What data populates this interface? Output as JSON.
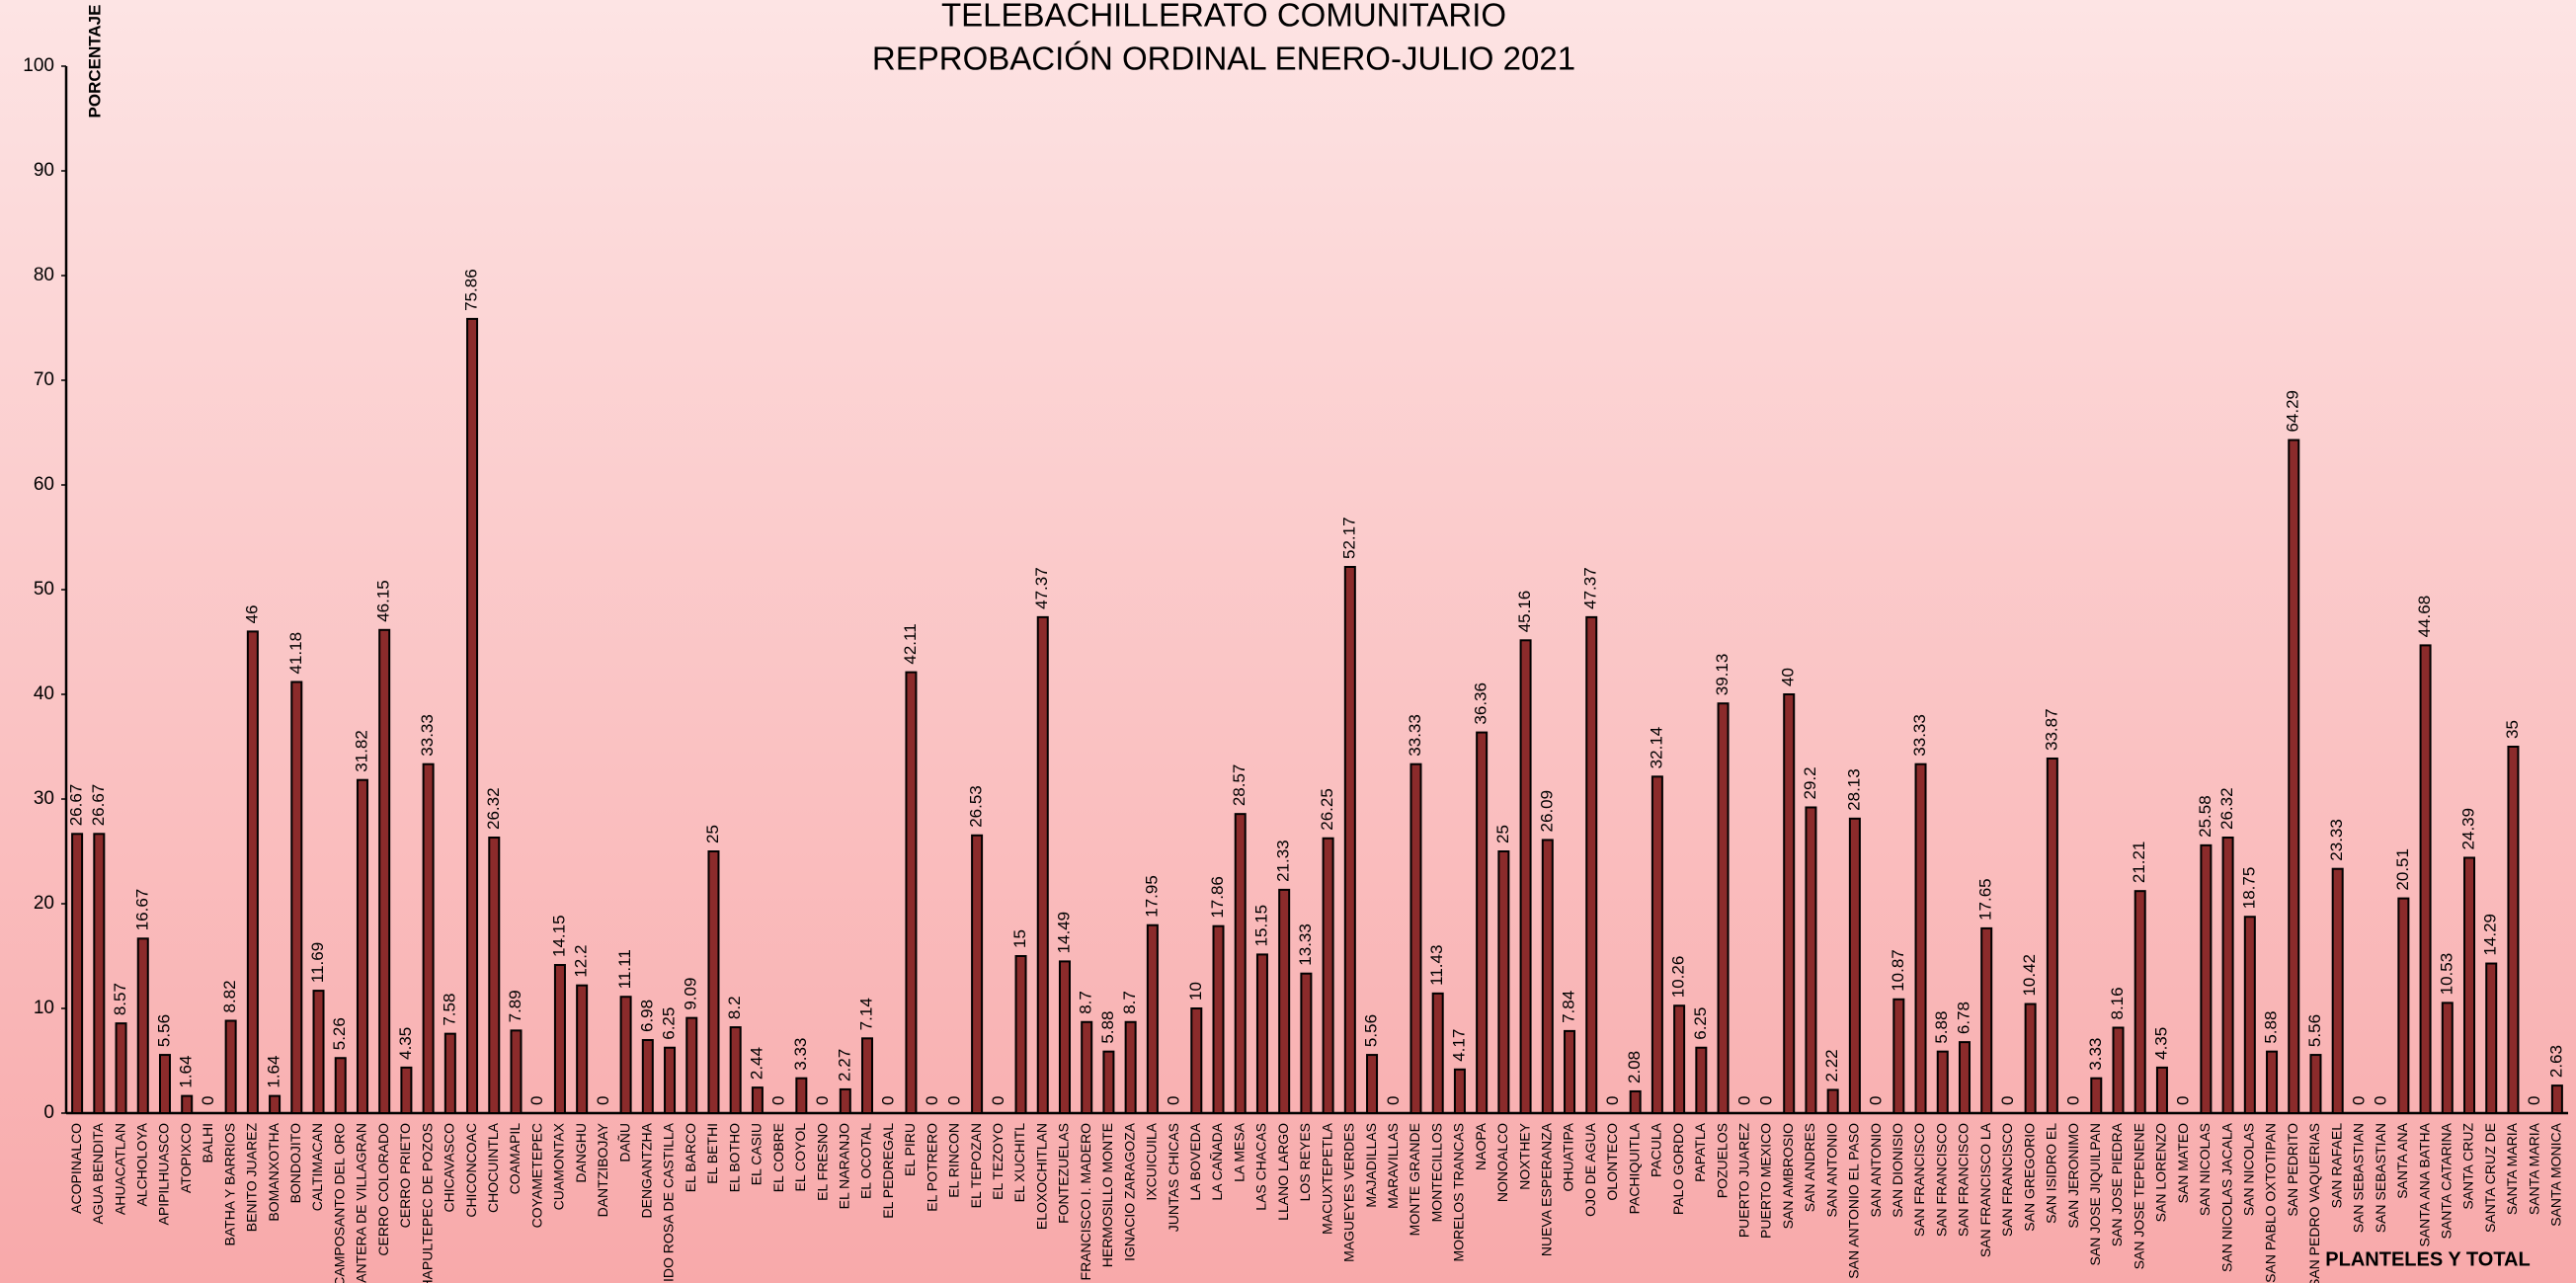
{
  "chart_data": {
    "type": "bar",
    "title": "TELEBACHILLERATO COMUNITARIO",
    "subtitle": "REPROBACIÓN ORDINAL ENERO-JULIO 2021",
    "y_label": "PORCENTAJE",
    "x_label": "PLANTELES Y TOTAL",
    "categories": [
      "ACOPINALCO",
      "AGUA BENDITA",
      "AHUACATLAN",
      "ALCHOLOYA",
      "APIPILHUASCO",
      "ATOPIXCO",
      "BALHI",
      "BATHA Y BARRIOS",
      "BENITO JUAREZ",
      "BOMANXOTHA",
      "BONDOJITO",
      "CALTIMACAN",
      "CAMPOSANTO DEL ORO",
      "CANTERA DE VILLAGRAN",
      "CERRO COLORADO",
      "CERRO PRIETO",
      "CHAPULTEPEC DE POZOS",
      "CHICAVASCO",
      "CHICONCOAC",
      "CHOCUINTLA",
      "COAMAPIL",
      "COYAMETEPEC",
      "CUAMONTAX",
      "DANGHU",
      "DANTZIBOJAY",
      "DAÑU",
      "DENGANTZHA",
      "EJIDO ROSA DE CASTILLA",
      "EL BARCO",
      "EL BETHI",
      "EL BOTHO",
      "EL CASIU",
      "EL COBRE",
      "EL COYOL",
      "EL FRESNO",
      "EL NARANJO",
      "EL OCOTAL",
      "EL PEDREGAL",
      "EL PIRU",
      "EL POTRERO",
      "EL RINCON",
      "EL TEPOZAN",
      "EL TEZOYO",
      "EL XUCHITL",
      "ELOXOCHITLAN",
      "FONTEZUELAS",
      "FRANCISCO I. MADERO",
      "HERMOSILLO MONTE",
      "IGNACIO ZARAGOZA",
      "IXCUICUILA",
      "JUNTAS CHICAS",
      "LA BOVEDA",
      "LA CAÑADA",
      "LA MESA",
      "LAS CHACAS",
      "LLANO LARGO",
      "LOS REYES",
      "MACUXTEPETLA",
      "MAGUEYES VERDES",
      "MAJADILLAS",
      "MARAVILLAS",
      "MONTE GRANDE",
      "MONTECILLOS",
      "MORELOS TRANCAS",
      "NAOPA",
      "NONOALCO",
      "NOXTHEY",
      "NUEVA ESPERANZA",
      "OHUATIPA",
      "OJO DE AGUA",
      "OLONTECO",
      "PACHIQUITLA",
      "PACULA",
      "PALO GORDO",
      "PAPATLA",
      "POZUELOS",
      "PUERTO JUAREZ",
      "PUERTO MEXICO",
      "SAN AMBROSIO",
      "SAN ANDRES",
      "SAN ANTONIO",
      "SAN ANTONIO EL PASO",
      "SAN ANTONIO",
      "SAN DIONISIO",
      "SAN FRANCISCO",
      "SAN FRANCISCO",
      "SAN FRANCISCO",
      "SAN FRANCISCO LA",
      "SAN FRANCISCO",
      "SAN GREGORIO",
      "SAN ISIDRO EL",
      "SAN JERONIMO",
      "SAN JOSE JIQUILPAN",
      "SAN JOSE PIEDRA",
      "SAN JOSE TEPENENE",
      "SAN LORENZO",
      "SAN MATEO",
      "SAN NICOLAS",
      "SAN NICOLAS JACALA",
      "SAN NICOLAS",
      "SAN PABLO OXTOTIPAN",
      "SAN PEDRITO",
      "SAN PEDRO VAQUERIAS",
      "SAN RAFAEL",
      "SAN SEBASTIAN",
      "SAN SEBASTIAN",
      "SANTA ANA",
      "SANTA ANA BATHA",
      "SANTA CATARINA",
      "SANTA CRUZ",
      "SANTA CRUZ DE",
      "SANTA MARIA",
      "SANTA MARIA",
      "SANTA MONICA"
    ],
    "values": [
      26.67,
      26.67,
      8.57,
      16.67,
      5.56,
      1.64,
      0,
      8.82,
      46,
      1.64,
      41.18,
      11.69,
      5.26,
      31.82,
      46.15,
      4.35,
      33.33,
      7.58,
      75.86,
      26.32,
      7.89,
      0,
      14.15,
      12.2,
      0,
      11.11,
      6.98,
      6.25,
      9.09,
      25,
      8.2,
      2.44,
      0,
      3.33,
      0,
      2.27,
      7.14,
      0,
      42.11,
      0,
      0,
      26.53,
      0,
      15,
      47.37,
      14.49,
      8.7,
      5.88,
      8.7,
      17.95,
      0,
      10,
      17.86,
      28.57,
      15.15,
      21.33,
      13.33,
      26.25,
      52.17,
      5.56,
      0,
      33.33,
      11.43,
      4.17,
      36.36,
      25,
      45.16,
      26.09,
      7.84,
      47.37,
      0,
      2.08,
      32.14,
      10.26,
      6.25,
      39.13,
      0,
      0,
      40,
      29.2,
      2.22,
      28.13,
      0,
      10.87,
      33.33,
      5.88,
      6.78,
      17.65,
      0,
      10.42,
      33.87,
      0,
      3.33,
      8.16,
      21.21,
      4.35,
      0,
      25.58,
      26.32,
      18.75,
      5.88,
      64.29,
      5.56,
      23.33,
      0,
      0,
      20.51,
      44.68,
      10.53,
      24.39,
      14.29,
      35,
      0,
      2.63
    ],
    "color": "#8b2b2b",
    "ylim": [
      0,
      100
    ],
    "yticks": [
      0,
      10,
      20,
      30,
      40,
      50,
      60,
      70,
      80,
      90,
      100
    ],
    "grid": false
  }
}
